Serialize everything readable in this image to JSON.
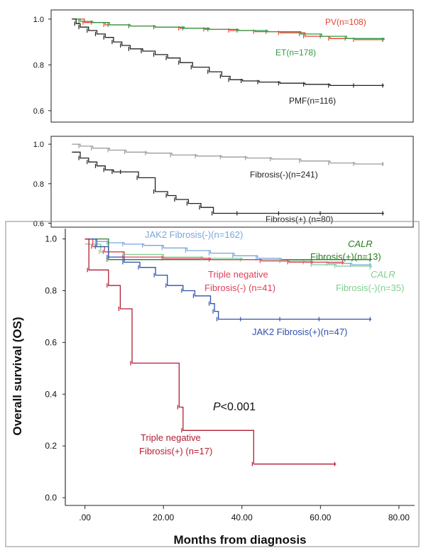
{
  "chart_data": [
    {
      "type": "line",
      "subtype": "kaplan-meier",
      "ylim": [
        0.55,
        1.04
      ],
      "xlim": [
        -5,
        82
      ],
      "yticks": [
        "1.0",
        "0.8",
        "0.6"
      ],
      "ytick_values": [
        1.0,
        0.8,
        0.6
      ],
      "series": [
        {
          "label": "PV(n=108)",
          "color": "#e8412f",
          "x": [
            0,
            3,
            8,
            14,
            20,
            26,
            32,
            38,
            44,
            50,
            56,
            62,
            68,
            75
          ],
          "y": [
            1.0,
            0.985,
            0.975,
            0.97,
            0.965,
            0.96,
            0.955,
            0.95,
            0.945,
            0.94,
            0.925,
            0.915,
            0.91,
            0.91
          ]
        },
        {
          "label": "ET(n=178)",
          "color": "#2f9a47",
          "x": [
            0,
            2,
            5,
            9,
            14,
            20,
            27,
            33,
            40,
            47,
            55,
            60,
            66,
            75
          ],
          "y": [
            1.0,
            0.99,
            0.985,
            0.975,
            0.97,
            0.965,
            0.96,
            0.955,
            0.95,
            0.945,
            0.935,
            0.925,
            0.915,
            0.91
          ]
        },
        {
          "label": "PMF(n=116)",
          "color": "#222222",
          "x": [
            0,
            1,
            2,
            4,
            6,
            8,
            10,
            12,
            14,
            17,
            20,
            23,
            26,
            29,
            33,
            36,
            38,
            41,
            45,
            50,
            56,
            62,
            68,
            75
          ],
          "y": [
            1.0,
            0.98,
            0.965,
            0.95,
            0.935,
            0.92,
            0.9,
            0.885,
            0.87,
            0.86,
            0.845,
            0.83,
            0.81,
            0.79,
            0.77,
            0.75,
            0.735,
            0.73,
            0.725,
            0.72,
            0.715,
            0.71,
            0.71,
            0.71
          ]
        }
      ]
    },
    {
      "type": "line",
      "subtype": "kaplan-meier",
      "ylim": [
        0.58,
        1.04
      ],
      "xlim": [
        -5,
        82
      ],
      "yticks": [
        "1.0",
        "0.8",
        "0.6"
      ],
      "ytick_values": [
        1.0,
        0.8,
        0.6
      ],
      "series": [
        {
          "label": "Fibrosis(-)(n=241)",
          "color": "#9c9c9c",
          "x": [
            0,
            2,
            5,
            9,
            13,
            18,
            24,
            30,
            36,
            42,
            48,
            55,
            62,
            68,
            75
          ],
          "y": [
            1.0,
            0.99,
            0.98,
            0.97,
            0.96,
            0.955,
            0.945,
            0.94,
            0.935,
            0.93,
            0.925,
            0.915,
            0.905,
            0.9,
            0.9
          ]
        },
        {
          "label": "Fibrosis(+) (n=80)",
          "color": "#222222",
          "x": [
            0,
            2,
            4,
            6,
            8,
            10,
            12,
            16,
            20,
            23,
            25,
            28,
            31,
            34,
            40,
            50,
            60,
            75
          ],
          "y": [
            0.96,
            0.93,
            0.91,
            0.89,
            0.87,
            0.86,
            0.86,
            0.83,
            0.76,
            0.74,
            0.72,
            0.7,
            0.68,
            0.65,
            0.65,
            0.65,
            0.65,
            0.65
          ]
        }
      ]
    },
    {
      "type": "line",
      "subtype": "kaplan-meier",
      "ylabel": "Overall survival (OS)",
      "xlabel": "Months from diagnosis",
      "ylim": [
        -0.03,
        1.04
      ],
      "xlim": [
        -5,
        84
      ],
      "yticks": [
        "0.0",
        "0.2",
        "0.4",
        "0.6",
        "0.8",
        "1.0"
      ],
      "ytick_values": [
        0.0,
        0.2,
        0.4,
        0.6,
        0.8,
        1.0
      ],
      "xticks": [
        ".00",
        "20.00",
        "40.00",
        "60.00",
        "80.00"
      ],
      "xtick_values": [
        0,
        20,
        40,
        60,
        80
      ],
      "annotation": {
        "prefix": "P",
        "text": "<0.001",
        "x": 33,
        "y": 0.35
      },
      "series": [
        {
          "label_lines": [
            "JAK2 Fibrosis(-)(n=162)"
          ],
          "color": "#7aa6dd",
          "x": [
            0,
            3,
            6,
            10,
            15,
            20,
            26,
            32,
            38,
            44,
            50,
            56,
            62,
            68,
            73
          ],
          "y": [
            1.0,
            0.99,
            0.985,
            0.98,
            0.975,
            0.965,
            0.955,
            0.945,
            0.935,
            0.925,
            0.915,
            0.91,
            0.905,
            0.9,
            0.9
          ]
        },
        {
          "label_lines": [
            "CALR",
            "Fibrosis(+)(n=13)"
          ],
          "color": "#2a7e22",
          "x": [
            0,
            6,
            73
          ],
          "y": [
            1.0,
            0.92,
            0.92
          ]
        },
        {
          "label_lines": [
            "CALR",
            "Fibrosis(-)(n=35)"
          ],
          "color": "#7fcf8f",
          "x": [
            0,
            4,
            10,
            20,
            30,
            40,
            50,
            58,
            64,
            73
          ],
          "y": [
            0.98,
            0.95,
            0.94,
            0.93,
            0.925,
            0.92,
            0.915,
            0.9,
            0.895,
            0.89
          ]
        },
        {
          "label_lines": [
            "Triple negative",
            "Fibrosis(-)  (n=41)"
          ],
          "color": "#e0405a",
          "x": [
            0,
            2,
            5,
            10,
            20,
            32,
            45,
            52,
            58,
            66
          ],
          "y": [
            1.0,
            0.97,
            0.95,
            0.93,
            0.925,
            0.92,
            0.915,
            0.91,
            0.91,
            0.91
          ]
        },
        {
          "label_lines": [
            "JAK2 Fibrosis(+)(n=47)"
          ],
          "color": "#2e4fae",
          "x": [
            0,
            3,
            6,
            10,
            14,
            18,
            21,
            25,
            28,
            32,
            33,
            34,
            40,
            50,
            60,
            73
          ],
          "y": [
            1.0,
            0.97,
            0.93,
            0.91,
            0.89,
            0.86,
            0.82,
            0.8,
            0.78,
            0.75,
            0.72,
            0.69,
            0.69,
            0.69,
            0.69,
            0.69
          ]
        },
        {
          "label_lines": [
            "Triple negative",
            "Fibrosis(+)  (n=17)"
          ],
          "color": "#b01e32",
          "x": [
            0,
            1,
            6,
            9,
            12,
            24,
            25,
            43,
            64
          ],
          "y": [
            1.0,
            0.88,
            0.82,
            0.73,
            0.52,
            0.35,
            0.26,
            0.13,
            0.13
          ]
        }
      ]
    }
  ]
}
